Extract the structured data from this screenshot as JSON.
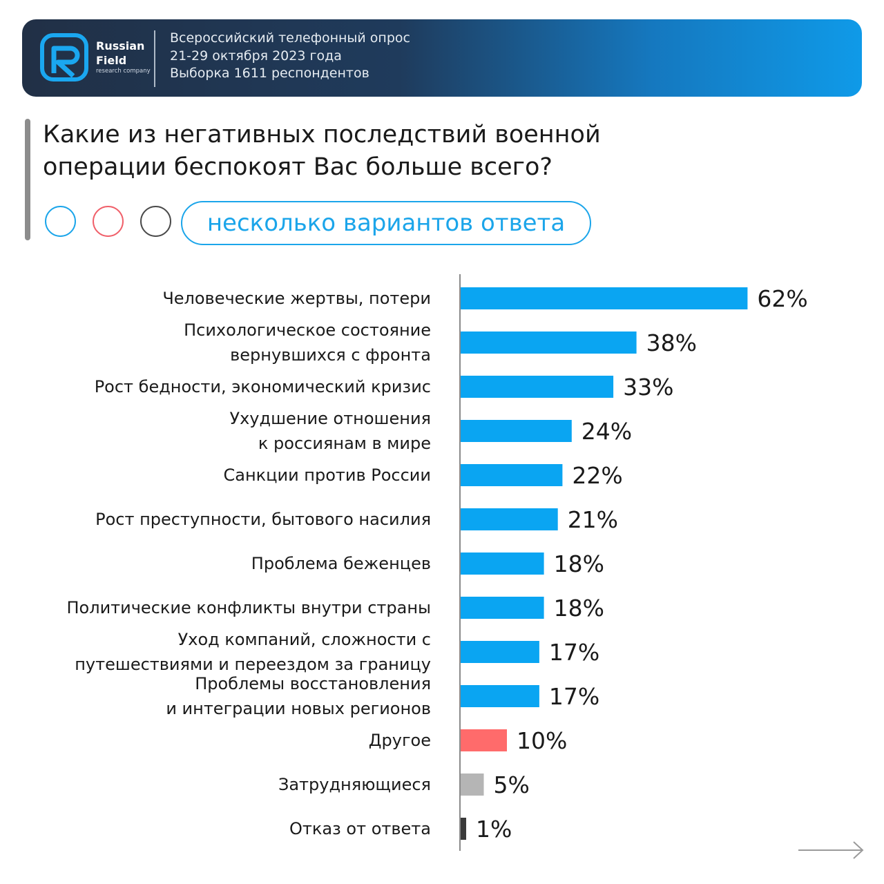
{
  "header": {
    "brand_line1": "Russian",
    "brand_line2": "Field",
    "brand_sub": "research company",
    "survey_lines": [
      "Всероссийский телефонный опрос",
      "21-29 октября 2023 года",
      "Выборка 1611 респондентов"
    ]
  },
  "question": {
    "title": "Какие из негативных последствий военной операции беспокоят Вас больше всего?",
    "answers_pill": "несколько вариантов ответа"
  },
  "icons": {
    "logo": "russian-field-logo-icon",
    "next": "arrow-right-icon"
  },
  "colors": {
    "primary": "#0aa5f2",
    "other": "#ff6b6b",
    "difficult": "#b5b5b5",
    "refused": "#3a3a3a",
    "header_dark": "#213046",
    "header_light": "#0f9ae8"
  },
  "chart_data": {
    "type": "bar",
    "orientation": "horizontal",
    "title": "Какие из негативных последствий военной операции беспокоят Вас больше всего?",
    "xlabel": "",
    "ylabel": "",
    "unit": "%",
    "xlim": [
      0,
      100
    ],
    "grid": false,
    "categories": [
      [
        "Человеческие жертвы, потери"
      ],
      [
        "Психологическое состояние",
        "вернувшихся с фронта"
      ],
      [
        "Рост бедности, экономический кризис"
      ],
      [
        "Ухудшение отношения",
        "к россиянам в мире"
      ],
      [
        "Санкции против России"
      ],
      [
        "Рост преступности, бытового насилия"
      ],
      [
        "Проблема беженцев"
      ],
      [
        "Политические конфликты внутри страны"
      ],
      [
        "Уход компаний, сложности с",
        "путешествиями и переездом за границу"
      ],
      [
        "Проблемы восстановления",
        "и интеграции новых регионов"
      ],
      [
        "Другое"
      ],
      [
        "Затрудняющиеся"
      ],
      [
        "Отказ от ответа"
      ]
    ],
    "values": [
      62,
      38,
      33,
      24,
      22,
      21,
      18,
      18,
      17,
      17,
      10,
      5,
      1
    ],
    "value_labels": [
      "62%",
      "38%",
      "33%",
      "24%",
      "22%",
      "21%",
      "18%",
      "18%",
      "17%",
      "17%",
      "10%",
      "5%",
      "1%"
    ],
    "bar_colors": [
      "#0aa5f2",
      "#0aa5f2",
      "#0aa5f2",
      "#0aa5f2",
      "#0aa5f2",
      "#0aa5f2",
      "#0aa5f2",
      "#0aa5f2",
      "#0aa5f2",
      "#0aa5f2",
      "#ff6b6b",
      "#b5b5b5",
      "#3a3a3a"
    ]
  }
}
